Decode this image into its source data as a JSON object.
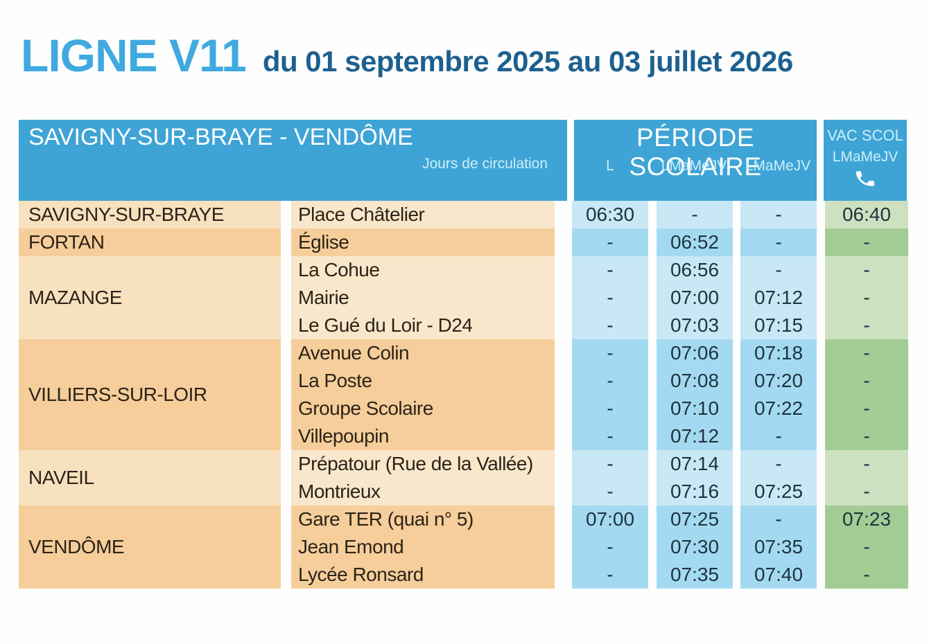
{
  "page": {
    "title": "LIGNE V11",
    "subtitle": "du 01 septembre 2025 au 03 juillet 2026"
  },
  "table": {
    "route_header": "SAVIGNY-SUR-BRAYE - VENDÔME",
    "jours_label": "Jours de circulation",
    "periode_header": "PÉRIODE SCOLAIRE",
    "vac_header": "VAC SCOL",
    "period_day_labels": [
      "L",
      "LMaMeJV",
      "LMaMeJV"
    ],
    "vac_day_label": "LMaMeJV",
    "phone_icon": "phone-icon",
    "groups": [
      {
        "commune": "SAVIGNY-SUR-BRAYE",
        "shade": "light",
        "stops": [
          {
            "name": "Place Châtelier",
            "times": [
              "06:30",
              "-",
              "-",
              "06:40"
            ]
          }
        ]
      },
      {
        "commune": "FORTAN",
        "shade": "dark",
        "stops": [
          {
            "name": "Église",
            "times": [
              "-",
              "06:52",
              "-",
              "-"
            ]
          }
        ]
      },
      {
        "commune": "MAZANGE",
        "shade": "light",
        "stops": [
          {
            "name": "La Cohue",
            "times": [
              "-",
              "06:56",
              "-",
              "-"
            ]
          },
          {
            "name": "Mairie",
            "times": [
              "-",
              "07:00",
              "07:12",
              "-"
            ]
          },
          {
            "name": "Le Gué du Loir - D24",
            "times": [
              "-",
              "07:03",
              "07:15",
              "-"
            ]
          }
        ]
      },
      {
        "commune": "VILLIERS-SUR-LOIR",
        "shade": "dark",
        "stops": [
          {
            "name": "Avenue Colin",
            "times": [
              "-",
              "07:06",
              "07:18",
              "-"
            ]
          },
          {
            "name": "La Poste",
            "times": [
              "-",
              "07:08",
              "07:20",
              "-"
            ]
          },
          {
            "name": "Groupe Scolaire",
            "times": [
              "-",
              "07:10",
              "07:22",
              "-"
            ]
          },
          {
            "name": "Villepoupin",
            "times": [
              "-",
              "07:12",
              "-",
              "-"
            ]
          }
        ]
      },
      {
        "commune": "NAVEIL",
        "shade": "light",
        "stops": [
          {
            "name": "Prépatour (Rue de la Vallée)",
            "times": [
              "-",
              "07:14",
              "-",
              "-"
            ]
          },
          {
            "name": "Montrieux",
            "times": [
              "-",
              "07:16",
              "07:25",
              "-"
            ]
          }
        ]
      },
      {
        "commune": "VENDÔME",
        "shade": "dark",
        "stops": [
          {
            "name": "Gare TER (quai n° 5)",
            "times": [
              "07:00",
              "07:25",
              "-",
              "07:23"
            ]
          },
          {
            "name": "Jean Emond",
            "times": [
              "-",
              "07:30",
              "07:35",
              "-"
            ]
          },
          {
            "name": "Lycée Ronsard",
            "times": [
              "-",
              "07:35",
              "07:40",
              "-"
            ]
          }
        ]
      }
    ],
    "colors": {
      "header_blue": "#3EA4D5",
      "header_text_light": "#CDEFF9",
      "title_blue": "#3FA9E0",
      "subtitle_blue": "#1D608F",
      "peach_light": "#F8E1BE",
      "peach_light_stop": "#F9E7CB",
      "peach_dark": "#F6CE9B",
      "blue_light": "#C8E8F5",
      "blue_dark": "#A4DAF1",
      "green_light": "#CDE1C0",
      "green_dark": "#A3CC94",
      "time_text": "#1E3240",
      "stop_text": "#2B2318"
    }
  }
}
